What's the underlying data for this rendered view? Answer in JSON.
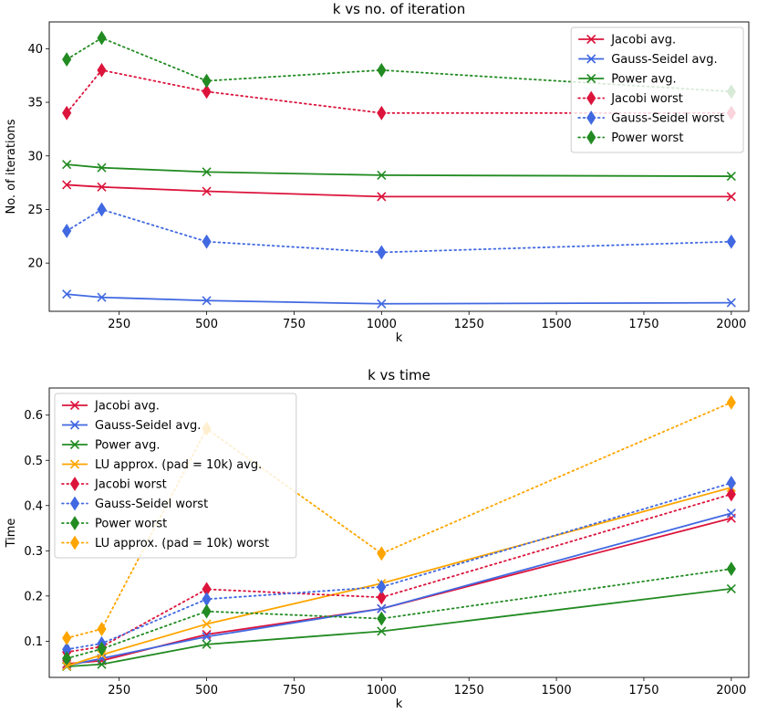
{
  "chart_data": [
    {
      "type": "line",
      "title": "k vs no. of iteration",
      "xlabel": "k",
      "ylabel": "No. of iterations",
      "xlim": [
        50,
        2050
      ],
      "ylim": [
        15.5,
        42.5
      ],
      "xticks": [
        250,
        500,
        750,
        1000,
        1250,
        1500,
        1750,
        2000
      ],
      "yticks": [
        20,
        25,
        30,
        35,
        40
      ],
      "legend_position": "top-right",
      "x": [
        100,
        200,
        500,
        1000,
        2000
      ],
      "series": [
        {
          "name": "Jacobi avg.",
          "color": "#dc143c",
          "style": "solid",
          "marker": "x",
          "values": [
            27.3,
            27.1,
            26.7,
            26.2,
            26.2
          ]
        },
        {
          "name": "Gauss-Seidel avg.",
          "color": "#4169e1",
          "style": "solid",
          "marker": "x",
          "values": [
            17.1,
            16.8,
            16.5,
            16.2,
            16.3
          ]
        },
        {
          "name": "Power avg.",
          "color": "#228b22",
          "style": "solid",
          "marker": "x",
          "values": [
            29.2,
            28.9,
            28.5,
            28.2,
            28.1
          ]
        },
        {
          "name": "Jacobi worst",
          "color": "#dc143c",
          "style": "dotted",
          "marker": "diamond",
          "values": [
            34,
            38,
            36,
            34,
            34
          ]
        },
        {
          "name": "Gauss-Seidel worst",
          "color": "#4169e1",
          "style": "dotted",
          "marker": "diamond",
          "values": [
            23,
            25,
            22,
            21,
            22
          ]
        },
        {
          "name": "Power worst",
          "color": "#228b22",
          "style": "dotted",
          "marker": "diamond",
          "values": [
            39,
            41,
            37,
            38,
            36
          ]
        }
      ]
    },
    {
      "type": "line",
      "title": "k vs time",
      "xlabel": "k",
      "ylabel": "Time",
      "xlim": [
        50,
        2050
      ],
      "ylim": [
        0.02,
        0.66
      ],
      "xticks": [
        250,
        500,
        750,
        1000,
        1250,
        1500,
        1750,
        2000
      ],
      "yticks": [
        0.1,
        0.2,
        0.3,
        0.4,
        0.5,
        0.6
      ],
      "legend_position": "top-left",
      "x": [
        100,
        200,
        500,
        1000,
        2000
      ],
      "series": [
        {
          "name": "Jacobi avg.",
          "color": "#dc143c",
          "style": "solid",
          "marker": "x",
          "values": [
            0.05,
            0.057,
            0.115,
            0.172,
            0.372
          ]
        },
        {
          "name": "Gauss-Seidel avg.",
          "color": "#4169e1",
          "style": "solid",
          "marker": "x",
          "values": [
            0.046,
            0.062,
            0.11,
            0.172,
            0.383
          ]
        },
        {
          "name": "Power avg.",
          "color": "#228b22",
          "style": "solid",
          "marker": "x",
          "values": [
            0.044,
            0.049,
            0.093,
            0.122,
            0.216
          ]
        },
        {
          "name": "LU approx. (pad = 10k) avg.",
          "color": "#ffa500",
          "style": "solid",
          "marker": "x",
          "values": [
            0.045,
            0.07,
            0.138,
            0.228,
            0.44
          ]
        },
        {
          "name": "Jacobi worst",
          "color": "#dc143c",
          "style": "dotted",
          "marker": "diamond",
          "values": [
            0.076,
            0.088,
            0.215,
            0.197,
            0.425
          ]
        },
        {
          "name": "Gauss-Seidel worst",
          "color": "#4169e1",
          "style": "dotted",
          "marker": "diamond",
          "values": [
            0.082,
            0.095,
            0.193,
            0.22,
            0.45
          ]
        },
        {
          "name": "Power worst",
          "color": "#228b22",
          "style": "dotted",
          "marker": "diamond",
          "values": [
            0.062,
            0.083,
            0.166,
            0.15,
            0.26
          ]
        },
        {
          "name": "LU approx. (pad = 10k) worst",
          "color": "#ffa500",
          "style": "dotted",
          "marker": "diamond",
          "values": [
            0.107,
            0.127,
            0.57,
            0.294,
            0.628
          ]
        }
      ]
    }
  ]
}
